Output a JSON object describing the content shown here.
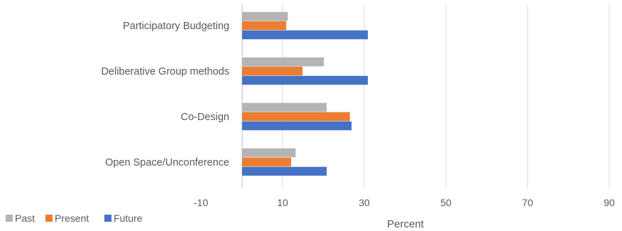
{
  "chart_data": {
    "type": "bar",
    "orientation": "horizontal",
    "categories": [
      "Participatory Budgeting",
      "Deliberative Group methods",
      "Co-Design",
      "Open Space/Unconference"
    ],
    "series": [
      {
        "name": "Past",
        "color": "#b4b4b4",
        "values": [
          11.2,
          20.0,
          20.7,
          13.1
        ]
      },
      {
        "name": "Present",
        "color": "#ed7d31",
        "values": [
          10.8,
          14.8,
          26.4,
          12.0
        ]
      },
      {
        "name": "Future",
        "color": "#4472c4",
        "values": [
          30.8,
          30.8,
          26.8,
          20.7
        ]
      }
    ],
    "x_ticks": [
      -10,
      10,
      30,
      50,
      70,
      90
    ],
    "xlim": [
      -10,
      90
    ],
    "xlabel": "Percent",
    "ylabel": "",
    "title": "",
    "grid": true,
    "legend_position": "bottom-left"
  }
}
